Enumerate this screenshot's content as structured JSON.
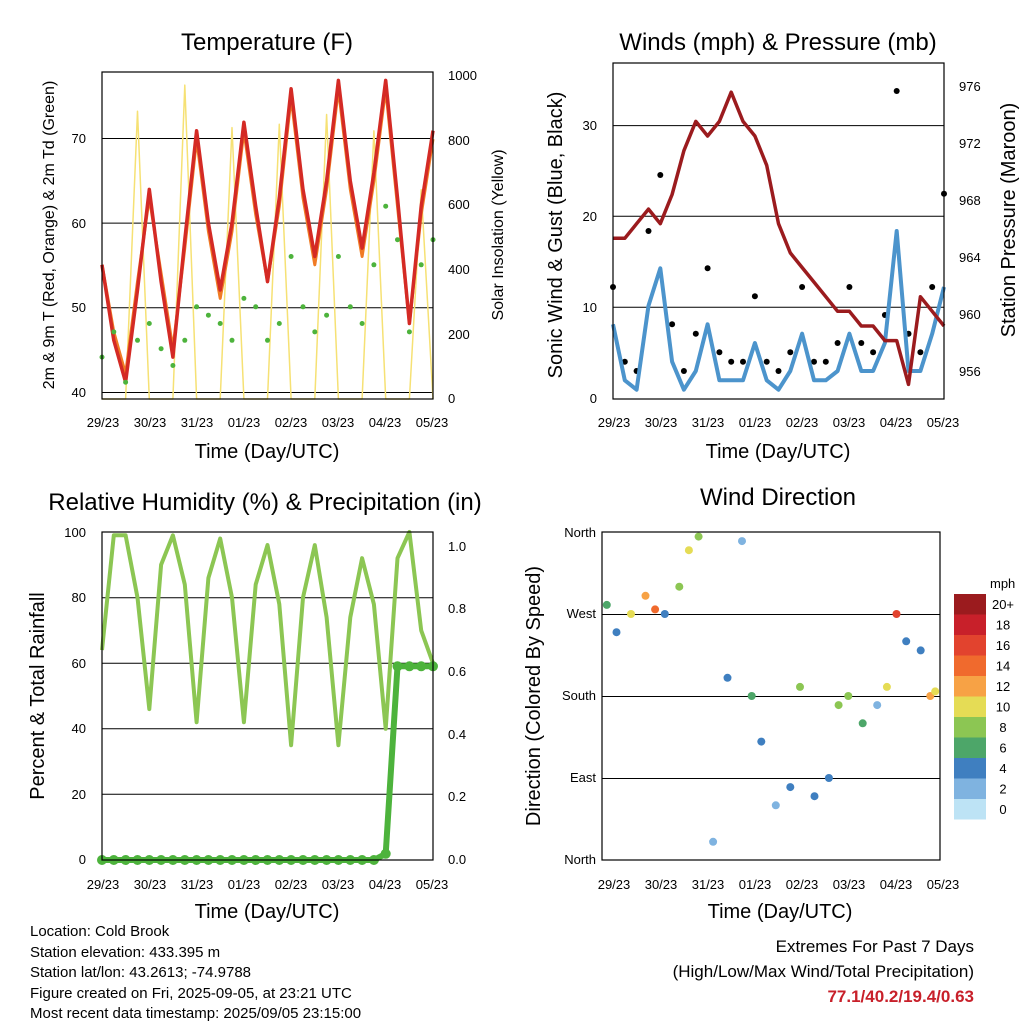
{
  "x_ticks": [
    "29/23",
    "30/23",
    "31/23",
    "01/23",
    "02/23",
    "03/23",
    "04/23",
    "05/23"
  ],
  "panels": {
    "temperature": {
      "title": "Temperature (F)",
      "ylabel": "2m & 9m T (Red, Orange) & 2m Td (Green)",
      "y2label": "Solar Insolation (Yellow)",
      "xlabel": "Time (Day/UTC)",
      "y_ticks": [
        "40",
        "50",
        "60",
        "70"
      ],
      "y2_ticks": [
        "0",
        "200",
        "400",
        "600",
        "800",
        "1000"
      ]
    },
    "winds": {
      "title": "Winds (mph) & Pressure (mb)",
      "ylabel": "Sonic Wind & Gust (Blue, Black)",
      "y2label": "Station Pressure (Maroon)",
      "xlabel": "Time (Day/UTC)",
      "y_ticks": [
        "0",
        "10",
        "20",
        "30"
      ],
      "y2_ticks": [
        "956",
        "960",
        "964",
        "968",
        "972",
        "976"
      ]
    },
    "humidity": {
      "title": "Relative Humidity (%) & Precipitation (in)",
      "ylabel": "Percent & Total Rainfall",
      "xlabel": "Time (Day/UTC)",
      "y_ticks": [
        "0",
        "20",
        "40",
        "60",
        "80",
        "100"
      ],
      "y2_ticks": [
        "0.0",
        "0.2",
        "0.4",
        "0.6",
        "0.8",
        "1.0"
      ]
    },
    "direction": {
      "title": "Wind Direction",
      "ylabel": "Direction (Colored By Speed)",
      "xlabel": "Time (Day/UTC)",
      "y_ticks": [
        "North",
        "East",
        "South",
        "West",
        "North"
      ],
      "legend_title": "mph",
      "legend_labels": [
        "20+",
        "18",
        "16",
        "14",
        "12",
        "10",
        "8",
        "6",
        "4",
        "2",
        "0"
      ],
      "legend_colors": [
        "#9b1b1e",
        "#c8202a",
        "#e2432e",
        "#f06a2d",
        "#f7a245",
        "#e5dc55",
        "#8cc653",
        "#4da669",
        "#3f7fc0",
        "#7fb3e0",
        "#bde3f5"
      ]
    }
  },
  "chart_data": [
    {
      "type": "line",
      "title": "Temperature (F)",
      "xlabel": "Time (Day/UTC)",
      "ylabel": "2m & 9m T (Red, Orange) & 2m Td (Green)",
      "y2label": "Solar Insolation (Yellow)",
      "x": [
        0,
        0.25,
        0.5,
        0.75,
        1,
        1.25,
        1.5,
        1.75,
        2,
        2.25,
        2.5,
        2.75,
        3,
        3.25,
        3.5,
        3.75,
        4,
        4.25,
        4.5,
        4.75,
        5,
        5.25,
        5.5,
        5.75,
        6,
        6.25,
        6.5,
        6.75,
        7
      ],
      "ylim": [
        39,
        78
      ],
      "y2lim": [
        0,
        1000
      ],
      "series": [
        {
          "name": "2m T",
          "color": "#d42a25",
          "values": [
            55,
            46,
            41,
            52,
            64,
            53,
            44,
            58,
            71,
            60,
            52,
            60,
            72,
            62,
            53,
            63,
            76,
            64,
            56,
            65,
            77,
            65,
            57,
            66,
            77,
            63,
            48,
            62,
            71
          ]
        },
        {
          "name": "9m T",
          "color": "#f07b24",
          "values": [
            55,
            47,
            42,
            53,
            63,
            54,
            45,
            57,
            70,
            59,
            51,
            59,
            71,
            61,
            53,
            62,
            75,
            63,
            55,
            64,
            76,
            64,
            56,
            65,
            76,
            62,
            48,
            61,
            70
          ]
        },
        {
          "name": "2m Td",
          "color": "#4db33c",
          "values": [
            44,
            47,
            41,
            46,
            48,
            45,
            43,
            46,
            50,
            49,
            48,
            46,
            51,
            50,
            46,
            48,
            56,
            50,
            47,
            49,
            56,
            50,
            48,
            55,
            62,
            58,
            47,
            55,
            58
          ]
        },
        {
          "name": "Solar",
          "color": "#f6e174",
          "axis": "y2",
          "values": [
            0,
            0,
            0,
            880,
            0,
            0,
            0,
            960,
            0,
            0,
            0,
            830,
            0,
            0,
            0,
            840,
            0,
            0,
            0,
            870,
            0,
            0,
            0,
            820,
            0,
            0,
            0,
            640,
            0
          ]
        }
      ]
    },
    {
      "type": "scatter",
      "title": "Winds (mph) & Pressure (mb)",
      "xlabel": "Time (Day/UTC)",
      "ylabel": "Sonic Wind & Gust (Blue, Black)",
      "y2label": "Station Pressure (Maroon)",
      "x": [
        0,
        0.25,
        0.5,
        0.75,
        1,
        1.25,
        1.5,
        1.75,
        2,
        2.25,
        2.5,
        2.75,
        3,
        3.25,
        3.5,
        3.75,
        4,
        4.25,
        4.5,
        4.75,
        5,
        5.25,
        5.5,
        5.75,
        6,
        6.25,
        6.5,
        6.75,
        7
      ],
      "ylim": [
        0,
        36
      ],
      "y2lim": [
        954,
        977
      ],
      "series": [
        {
          "name": "Gust",
          "color": "#000000",
          "values": [
            12,
            4,
            3,
            18,
            24,
            8,
            3,
            7,
            14,
            5,
            4,
            4,
            11,
            4,
            3,
            5,
            12,
            4,
            4,
            6,
            12,
            6,
            5,
            9,
            33,
            7,
            5,
            12,
            22
          ]
        },
        {
          "name": "Wind",
          "color": "#4c94cc",
          "values": [
            8,
            2,
            1,
            10,
            14,
            4,
            1,
            3,
            8,
            2,
            2,
            2,
            6,
            2,
            1,
            3,
            7,
            2,
            2,
            3,
            7,
            3,
            3,
            6,
            18,
            3,
            3,
            7,
            12
          ]
        },
        {
          "name": "Pressure",
          "color": "#9b1b1e",
          "axis": "y2",
          "values": [
            965,
            965,
            966,
            967,
            966,
            968,
            971,
            973,
            972,
            973,
            975,
            973,
            972,
            970,
            966,
            964,
            963,
            962,
            961,
            960,
            960,
            959,
            959,
            958,
            958,
            955,
            961,
            960,
            959
          ]
        }
      ]
    },
    {
      "type": "line",
      "title": "Relative Humidity (%) & Precipitation (in)",
      "xlabel": "Time (Day/UTC)",
      "ylabel": "Percent & Total Rainfall",
      "x": [
        0,
        0.25,
        0.5,
        0.75,
        1,
        1.25,
        1.5,
        1.75,
        2,
        2.25,
        2.5,
        2.75,
        3,
        3.25,
        3.5,
        3.75,
        4,
        4.25,
        4.5,
        4.75,
        5,
        5.25,
        5.5,
        5.75,
        6,
        6.25,
        6.5,
        6.75,
        7
      ],
      "ylim": [
        0,
        100
      ],
      "y2lim": [
        0,
        1.05
      ],
      "series": [
        {
          "name": "RH",
          "color": "#8cc653",
          "values": [
            64,
            99,
            99,
            80,
            46,
            90,
            99,
            84,
            42,
            86,
            98,
            80,
            42,
            84,
            96,
            78,
            35,
            80,
            96,
            74,
            35,
            74,
            92,
            78,
            40,
            92,
            100,
            70,
            60
          ]
        },
        {
          "name": "Precipitation",
          "color": "#4db33c",
          "axis": "y2",
          "values": [
            0,
            0,
            0,
            0,
            0,
            0,
            0,
            0,
            0,
            0,
            0,
            0,
            0,
            0,
            0,
            0,
            0,
            0,
            0,
            0,
            0,
            0,
            0,
            0,
            0.02,
            0.62,
            0.62,
            0.62,
            0.62
          ]
        }
      ]
    },
    {
      "type": "scatter",
      "title": "Wind Direction",
      "xlabel": "Time (Day/UTC)",
      "ylabel": "Direction (Colored By Speed)",
      "ylim": [
        0,
        360
      ],
      "x": [
        0.1,
        0.3,
        0.6,
        0.9,
        1.1,
        1.3,
        1.6,
        1.8,
        2.0,
        2.3,
        2.6,
        2.9,
        3.1,
        3.3,
        3.6,
        3.9,
        4.1,
        4.4,
        4.7,
        4.9,
        5.1,
        5.4,
        5.7,
        5.9,
        6.1,
        6.3,
        6.6,
        6.8,
        6.9
      ],
      "values": [
        280,
        250,
        270,
        290,
        275,
        270,
        300,
        340,
        355,
        20,
        200,
        350,
        180,
        130,
        60,
        80,
        190,
        70,
        90,
        170,
        180,
        150,
        170,
        190,
        270,
        240,
        230,
        180,
        185
      ],
      "speeds": [
        6,
        4,
        10,
        12,
        14,
        4,
        8,
        10,
        8,
        2,
        4,
        2,
        6,
        4,
        2,
        4,
        8,
        4,
        4,
        8,
        8,
        6,
        2,
        10,
        16,
        4,
        4,
        12,
        10
      ]
    }
  ],
  "footer": {
    "location": "Location: Cold Brook",
    "elevation": "Station elevation: 433.395 m",
    "latlon": "Station lat/lon: 43.2613; -74.9788",
    "created": "Figure created on Fri, 2025-09-05, at 23:21 UTC",
    "recent": "Most recent data timestamp: 2025/09/05 23:15:00",
    "extremes_title": "Extremes For Past 7 Days",
    "extremes_subtitle": "(High/Low/Max Wind/Total Precipitation)",
    "extremes_values": "77.1/40.2/19.4/0.63"
  }
}
